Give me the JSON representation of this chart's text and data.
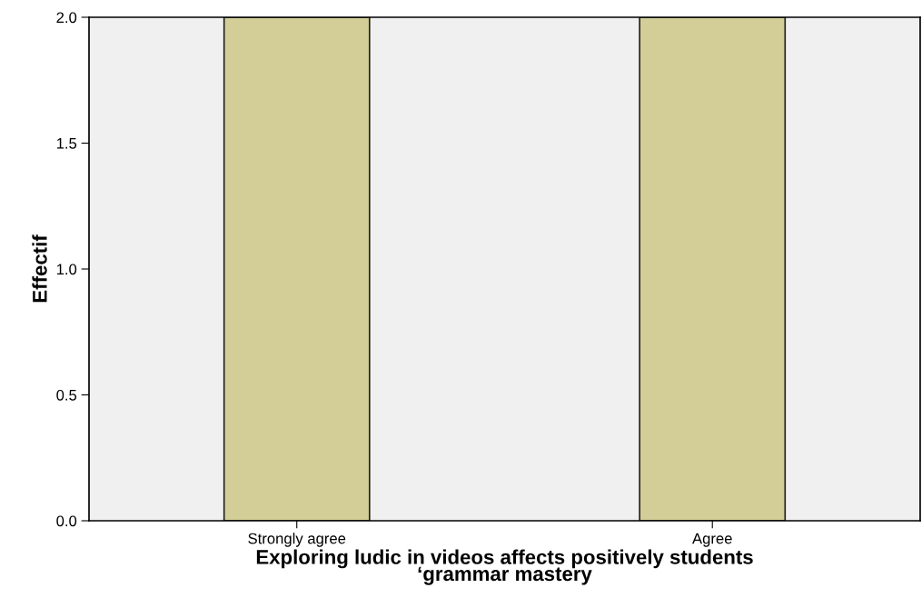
{
  "chart_data": {
    "type": "bar",
    "xlabel": "Exploring ludic in videos affects positively students\n‘grammar mastery",
    "ylabel": "Effectif",
    "categories": [
      "Strongly agree",
      "Agree"
    ],
    "values": [
      2,
      2
    ],
    "color": "#d3ce97",
    "ylim": [
      0,
      2
    ],
    "yticks": [
      {
        "value": 0,
        "label": "0.0"
      },
      {
        "value": 0.5,
        "label": "0.5"
      },
      {
        "value": 1,
        "label": "1.0"
      },
      {
        "value": 1.5,
        "label": "1.5"
      },
      {
        "value": 2,
        "label": "2.0"
      }
    ],
    "grid": false,
    "legend": false
  }
}
